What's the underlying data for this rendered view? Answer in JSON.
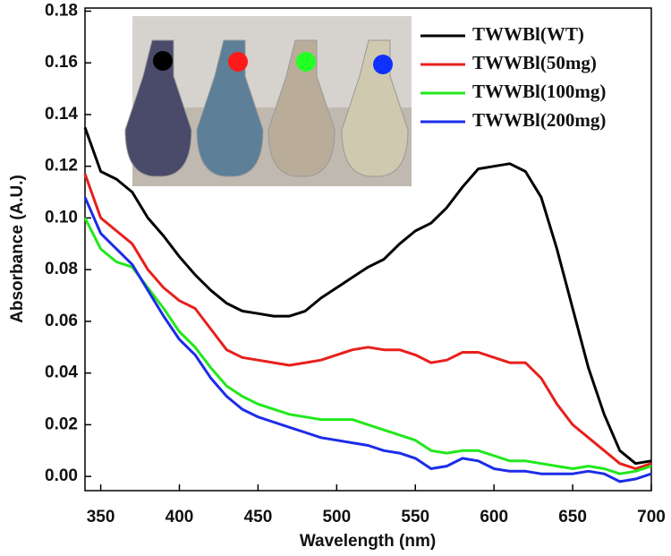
{
  "chart_data": {
    "type": "line",
    "x_label": "Wavelength (nm)",
    "y_label": "Absorbance (A.U.)",
    "x": [
      340,
      350,
      360,
      370,
      380,
      390,
      400,
      410,
      420,
      430,
      440,
      450,
      460,
      470,
      480,
      490,
      500,
      510,
      520,
      530,
      540,
      550,
      560,
      570,
      580,
      590,
      600,
      610,
      620,
      630,
      640,
      650,
      660,
      670,
      680,
      690,
      700
    ],
    "series": [
      {
        "name": "TWWBl(WT)",
        "color": "#000000",
        "values": [
          0.135,
          0.118,
          0.115,
          0.11,
          0.1,
          0.093,
          0.085,
          0.078,
          0.072,
          0.067,
          0.064,
          0.063,
          0.062,
          0.062,
          0.064,
          0.069,
          0.073,
          0.077,
          0.081,
          0.084,
          0.09,
          0.095,
          0.098,
          0.104,
          0.112,
          0.119,
          0.12,
          0.121,
          0.118,
          0.108,
          0.088,
          0.065,
          0.042,
          0.024,
          0.01,
          0.005,
          0.006
        ]
      },
      {
        "name": "TWWBl(50mg)",
        "color": "#e8201c",
        "values": [
          0.117,
          0.1,
          0.095,
          0.09,
          0.08,
          0.073,
          0.068,
          0.065,
          0.057,
          0.049,
          0.046,
          0.045,
          0.044,
          0.043,
          0.044,
          0.045,
          0.047,
          0.049,
          0.05,
          0.049,
          0.049,
          0.047,
          0.044,
          0.045,
          0.048,
          0.048,
          0.046,
          0.044,
          0.044,
          0.038,
          0.028,
          0.02,
          0.015,
          0.01,
          0.005,
          0.003,
          0.005
        ]
      },
      {
        "name": "TWWBl(100mg)",
        "color": "#22e81c",
        "values": [
          0.1,
          0.088,
          0.083,
          0.081,
          0.073,
          0.065,
          0.056,
          0.05,
          0.042,
          0.035,
          0.031,
          0.028,
          0.026,
          0.024,
          0.023,
          0.022,
          0.022,
          0.022,
          0.02,
          0.018,
          0.016,
          0.014,
          0.01,
          0.009,
          0.01,
          0.01,
          0.008,
          0.006,
          0.006,
          0.005,
          0.004,
          0.003,
          0.004,
          0.003,
          0.001,
          0.002,
          0.004
        ]
      },
      {
        "name": "TWWBl(200mg)",
        "color": "#1c2ce8",
        "values": [
          0.108,
          0.094,
          0.088,
          0.082,
          0.072,
          0.062,
          0.053,
          0.047,
          0.038,
          0.031,
          0.026,
          0.023,
          0.021,
          0.019,
          0.017,
          0.015,
          0.014,
          0.013,
          0.012,
          0.01,
          0.009,
          0.007,
          0.003,
          0.004,
          0.007,
          0.006,
          0.003,
          0.002,
          0.002,
          0.001,
          0.001,
          0.001,
          0.002,
          0.001,
          -0.002,
          -0.001,
          0.001
        ]
      }
    ],
    "xlim": [
      340,
      700
    ],
    "xticks": [
      350,
      400,
      450,
      500,
      550,
      600,
      650,
      700
    ],
    "ylim": [
      -0.0055,
      0.1812
    ],
    "yticks": [
      {
        "value": 0,
        "label": "0.00"
      },
      {
        "value": 0.02,
        "label": "0.02"
      },
      {
        "value": 0.04,
        "label": "0.04"
      },
      {
        "value": 0.06,
        "label": "0.06"
      },
      {
        "value": 0.08,
        "label": "0.08"
      },
      {
        "value": 0.1,
        "label": "0.10"
      },
      {
        "value": 0.12,
        "label": "0.12"
      },
      {
        "value": 0.14,
        "label": "0.14"
      },
      {
        "value": 0.16,
        "label": "0.16"
      },
      {
        "value": 0.18,
        "label": "0.18"
      }
    ],
    "legend": "upper-right"
  }
}
